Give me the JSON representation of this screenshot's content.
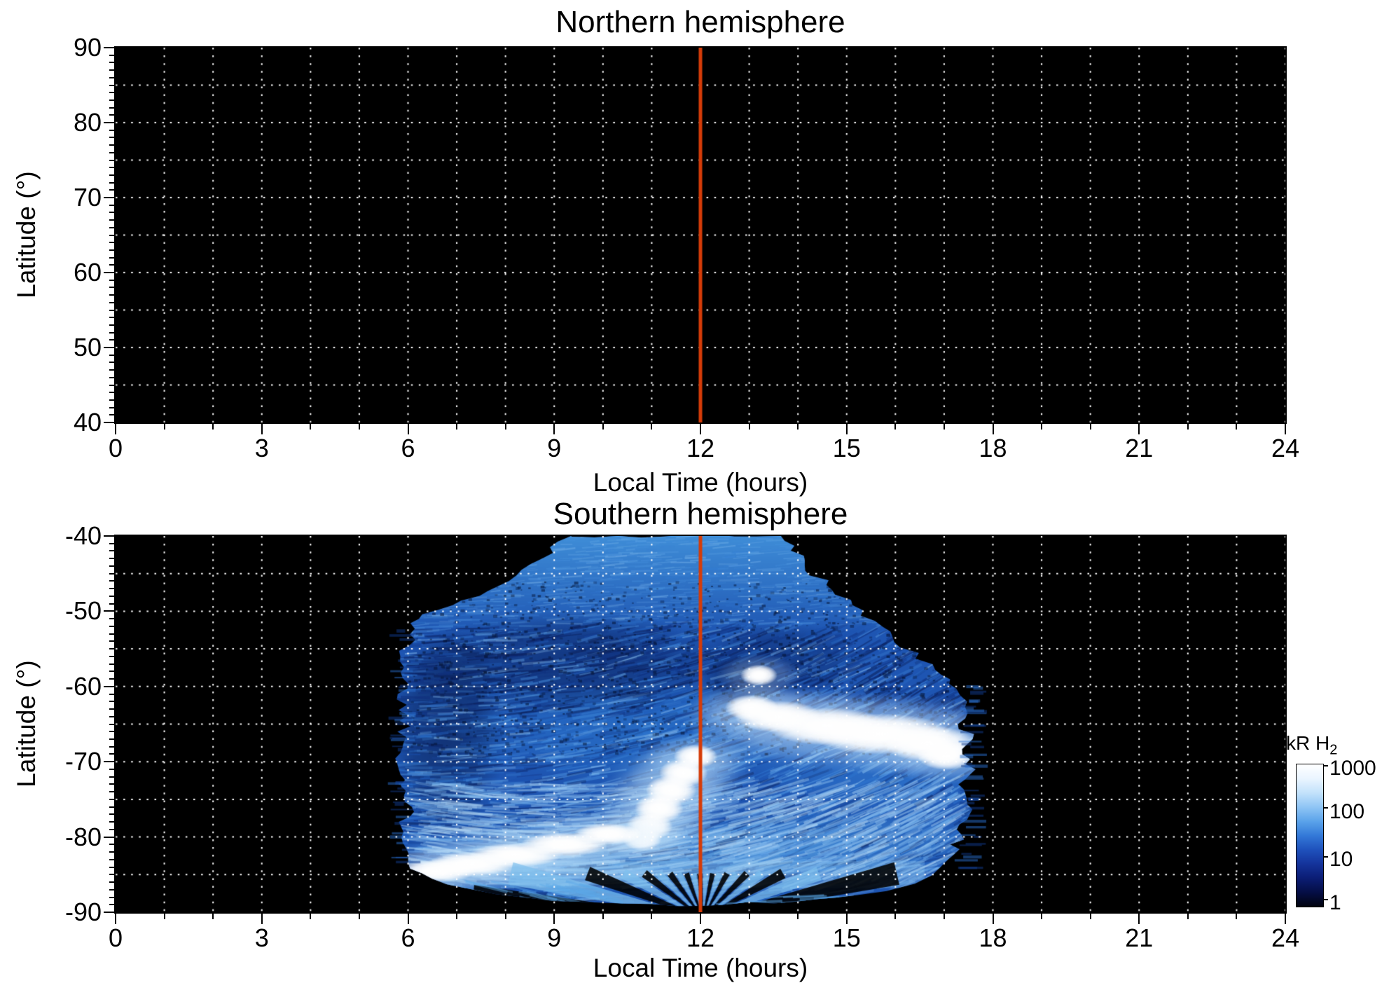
{
  "figure": {
    "background": "#ffffff",
    "description": "Two-panel map of H2 emission brightness versus local time and latitude with a shared logarithmic blue colorbar; vertical orange line marks local noon"
  },
  "chart_data": [
    {
      "type": "heatmap",
      "panel": "northern",
      "title": "Northern hemisphere",
      "xlabel": "Local Time (hours)",
      "ylabel": "Latitude (°)",
      "xlim": [
        0,
        24
      ],
      "ylim": [
        40,
        90
      ],
      "xticks": [
        0,
        3,
        6,
        9,
        12,
        15,
        18,
        21,
        24
      ],
      "xtick_labels": [
        "0",
        "3",
        "6",
        "9",
        "12",
        "15",
        "18",
        "21",
        "24"
      ],
      "yticks": [
        90,
        80,
        70,
        60,
        50,
        40
      ],
      "ytick_labels": [
        "90",
        "80",
        "70",
        "60",
        "50",
        "40"
      ],
      "x_minor_interval": 1,
      "y_minor_interval": 1,
      "grid": {
        "x_interval_hours": 1,
        "y_interval_deg": 5,
        "style": "dotted",
        "color": "#ffffff"
      },
      "plot_background": "#000000",
      "noon_line": {
        "hour": 12,
        "color": "#d53c08"
      },
      "data_summary": "No emission above the 1 kR colour floor; panel entirely black",
      "emission": null
    },
    {
      "type": "heatmap",
      "panel": "southern",
      "title": "Southern hemisphere",
      "xlabel": "Local Time (hours)",
      "ylabel": "Latitude (°)",
      "xlim": [
        0,
        24
      ],
      "ylim": [
        -90,
        -40
      ],
      "xticks": [
        0,
        3,
        6,
        9,
        12,
        15,
        18,
        21,
        24
      ],
      "xtick_labels": [
        "0",
        "3",
        "6",
        "9",
        "12",
        "15",
        "18",
        "21",
        "24"
      ],
      "yticks": [
        -40,
        -50,
        -60,
        -70,
        -80,
        -90
      ],
      "ytick_labels": [
        "-40",
        "-50",
        "-60",
        "-70",
        "-80",
        "-90"
      ],
      "x_minor_interval": 1,
      "y_minor_interval": 1,
      "grid": {
        "x_interval_hours": 1,
        "y_interval_deg": 5,
        "style": "dotted",
        "color": "#ffffff"
      },
      "plot_background": "#000000",
      "noon_line": {
        "hour": 12,
        "color": "#d53c08"
      },
      "data_summary": "Speckled blue diffuse emission (~5-100 kR) between ~05:54 and ~17:30 local time, brightening poleward, with saturated white (>1000 kR) auroral patches and a radial scan fan converging toward the pole near local noon",
      "emission": {
        "local_time_extent_hours": [
          5.9,
          17.5
        ],
        "diffuse_intensity_kR": [
          5,
          100
        ],
        "boundary_points_hour_lat": [
          [
            9.35,
            -40
          ],
          [
            8.7,
            -43
          ],
          [
            8.05,
            -46
          ],
          [
            7.2,
            -48.6
          ],
          [
            6.4,
            -50.4
          ],
          [
            6.05,
            -51.6
          ],
          [
            5.95,
            -56
          ],
          [
            5.9,
            -61
          ],
          [
            5.95,
            -66
          ],
          [
            5.9,
            -71
          ],
          [
            5.95,
            -76
          ],
          [
            6.0,
            -80
          ],
          [
            6.1,
            -83
          ],
          [
            6.2,
            -84.8
          ],
          [
            6.8,
            -86.3
          ],
          [
            7.8,
            -87.6
          ],
          [
            9.0,
            -88.5
          ],
          [
            10.5,
            -88.9
          ],
          [
            12.0,
            -89.0
          ],
          [
            13.5,
            -88.7
          ],
          [
            14.8,
            -88.1
          ],
          [
            15.8,
            -87.2
          ],
          [
            16.4,
            -86.2
          ],
          [
            16.75,
            -85.1
          ],
          [
            17.0,
            -83.5
          ],
          [
            17.25,
            -81.0
          ],
          [
            17.4,
            -77.0
          ],
          [
            17.5,
            -71.0
          ],
          [
            17.45,
            -65.0
          ],
          [
            17.4,
            -62.0
          ],
          [
            17.25,
            -60.3
          ],
          [
            16.85,
            -57.8
          ],
          [
            16.25,
            -54.8
          ],
          [
            15.55,
            -51.3
          ],
          [
            14.85,
            -47.8
          ],
          [
            14.25,
            -44.6
          ],
          [
            13.8,
            -41.3
          ],
          [
            13.65,
            -40
          ]
        ],
        "shading_regions": [
          {
            "shape": "band",
            "lat_from": -40,
            "lat_to": -53,
            "color": "#4aa0e4",
            "alpha": 0.75
          },
          {
            "shape": "ellipse",
            "center_hour_lat": [
              9.3,
              -57
            ],
            "r_hour_deg": [
              3.2,
              7.0
            ],
            "color": "#071a50",
            "alpha": 0.5
          },
          {
            "shape": "ellipse",
            "center_hour_lat": [
              13.6,
              -56.5
            ],
            "r_hour_deg": [
              1.8,
              5.0
            ],
            "color": "#081d58",
            "alpha": 0.45
          },
          {
            "shape": "ellipse",
            "center_hour_lat": [
              12.9,
              -59.5
            ],
            "r_hour_deg": [
              0.9,
              4.0
            ],
            "color": "#061848",
            "alpha": 0.4
          },
          {
            "shape": "ellipse",
            "center_hour_lat": [
              6.8,
              -66.0
            ],
            "r_hour_deg": [
              1.2,
              14.0
            ],
            "color": "#05123c",
            "alpha": 0.5
          },
          {
            "shape": "ellipse",
            "center_hour_lat": [
              11.0,
              -66.0
            ],
            "r_hour_deg": [
              4.0,
              7.0
            ],
            "color": "#2f7fd4",
            "alpha": 0.5
          },
          {
            "shape": "ellipse",
            "center_hour_lat": [
              15.8,
              -70.0
            ],
            "r_hour_deg": [
              2.8,
              7.0
            ],
            "color": "#3c8de0",
            "alpha": 0.45
          },
          {
            "shape": "ellipse",
            "center_hour_lat": [
              10.8,
              -82.0
            ],
            "r_hour_deg": [
              5.0,
              4.5
            ],
            "color": "#7fc2f0",
            "alpha": 0.65
          },
          {
            "shape": "ellipse",
            "center_hour_lat": [
              14.8,
              -81.0
            ],
            "r_hour_deg": [
              3.2,
              5.0
            ],
            "color": "#4897e0",
            "alpha": 0.5
          },
          {
            "shape": "ellipse",
            "center_hour_lat": [
              8.5,
              -84.5
            ],
            "r_hour_deg": [
              2.5,
              2.0
            ],
            "color": "#a8d8f6",
            "alpha": 0.5
          }
        ],
        "white_features_over_1000_kR": [
          {
            "name": "afternoon-spot",
            "lobes_hour_lat_rx_ry": [
              [
                13.2,
                -58.5,
                0.38,
                1.4
              ]
            ]
          },
          {
            "name": "afternoon-auroral-oval",
            "lobes_hour_lat_rx_ry": [
              [
                13.05,
                -62.8,
                0.55,
                1.7
              ],
              [
                13.6,
                -64.0,
                0.9,
                2.1
              ],
              [
                14.6,
                -65.3,
                1.25,
                2.5
              ],
              [
                15.7,
                -66.3,
                1.45,
                2.7
              ],
              [
                16.7,
                -67.6,
                0.95,
                2.4
              ],
              [
                17.05,
                -69.2,
                0.6,
                1.9
              ]
            ]
          },
          {
            "name": "noon-high-latitude-arc",
            "lobes_hour_lat_rx_ry": [
              [
                11.9,
                -69.3,
                0.45,
                1.6
              ],
              [
                11.65,
                -71.5,
                0.5,
                1.9
              ],
              [
                11.4,
                -73.8,
                0.52,
                2.0
              ],
              [
                11.15,
                -76.2,
                0.5,
                2.0
              ],
              [
                10.95,
                -78.6,
                0.48,
                1.9
              ],
              [
                10.8,
                -80.3,
                0.4,
                1.5
              ]
            ]
          },
          {
            "name": "dawn-polar-band",
            "lobes_hour_lat_rx_ry": [
              [
                6.6,
                -84.5,
                0.8,
                1.5
              ],
              [
                7.3,
                -83.6,
                0.9,
                1.6
              ],
              [
                8.2,
                -82.4,
                0.95,
                1.6
              ],
              [
                9.2,
                -81.0,
                0.9,
                1.6
              ],
              [
                10.1,
                -79.6,
                0.7,
                1.4
              ]
            ]
          }
        ],
        "scan_fan": {
          "apex_hour_lat": [
            12.05,
            -90.8
          ],
          "reaches_lat": -85.0,
          "hour_span_at_pole": [
            7.2,
            16.9
          ]
        }
      }
    }
  ],
  "colorbar": {
    "title": "kR H",
    "title_sub": "2",
    "scale": "log",
    "range_kR": [
      1,
      1000
    ],
    "tick_labels": [
      "1000",
      "100",
      "10",
      "1"
    ],
    "colors_top_to_bottom": [
      "#ffffff",
      "#eaf5ff",
      "#c3e2fb",
      "#8fc5f5",
      "#5ba3ea",
      "#3379d8",
      "#1f51bc",
      "#14339b",
      "#0b1d74",
      "#050e45",
      "#01030e"
    ]
  }
}
